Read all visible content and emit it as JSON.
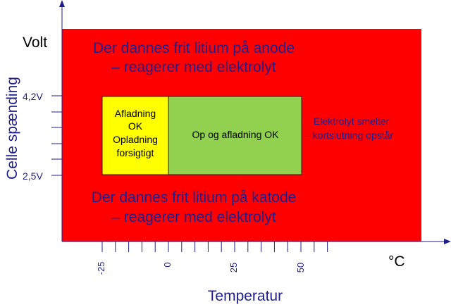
{
  "diagram": {
    "y_unit_label": "Volt",
    "y_axis_title": "Celle spænding",
    "x_unit_label": "°C",
    "x_axis_title": "Temperatur",
    "y_ticks": [
      "4,2V",
      "2,5V"
    ],
    "x_ticks": [
      "-25",
      "0",
      "25",
      "50"
    ],
    "region_top": {
      "line1": "Der dannes frit litium på anode",
      "line2": "– reagerer med elektrolyt"
    },
    "region_bottom": {
      "line1": "Der dannes frit litium på katode",
      "line2": "– reagerer med elektrolyt"
    },
    "region_right": {
      "line1": "Elektrolyt smelter",
      "line2": "– kortslutning opstår"
    },
    "zone_yellow": {
      "line1": "Afladning",
      "line2": "OK",
      "line3": "Opladning",
      "line4": "forsigtigt"
    },
    "zone_green": {
      "label": "Op og afladning OK"
    },
    "colors": {
      "danger": "#ff0000",
      "caution": "#ffff00",
      "safe": "#92d050",
      "axis_text": "#1f1f8c"
    }
  }
}
